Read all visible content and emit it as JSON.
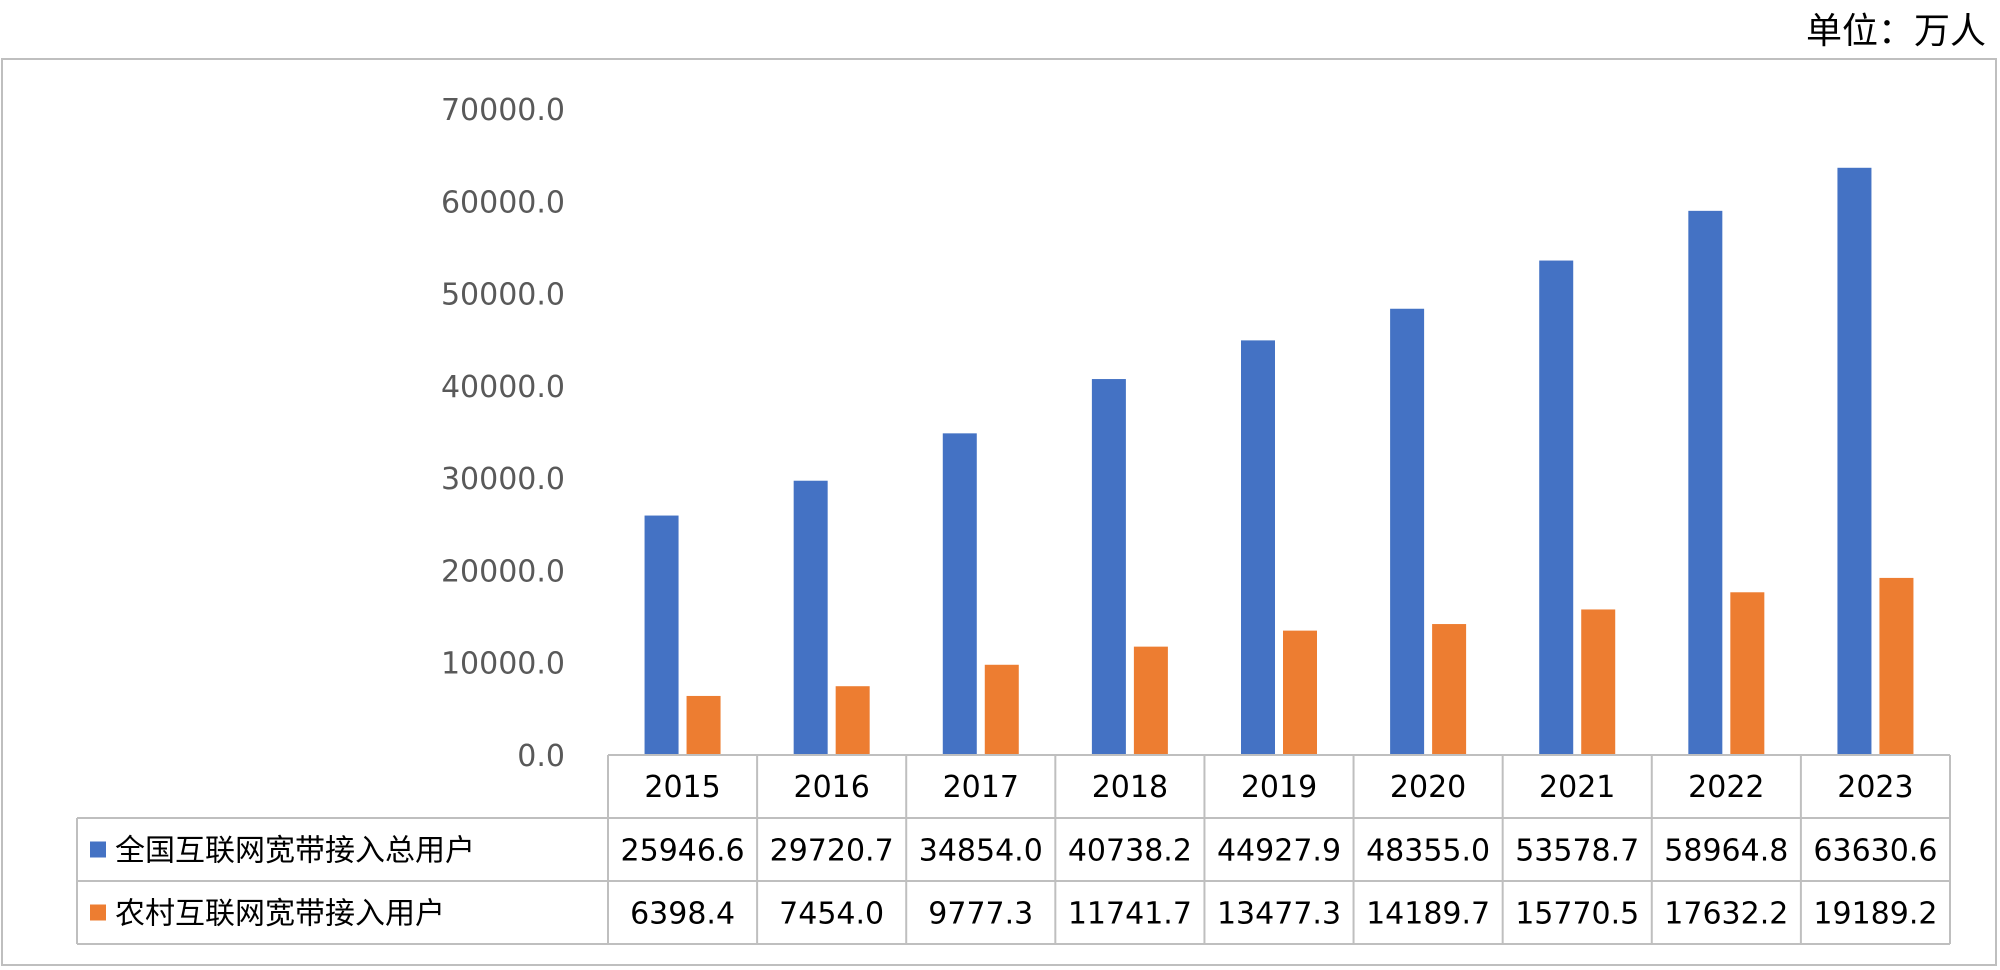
{
  "unit_label": "单位：万人",
  "chart_data": {
    "type": "bar",
    "categories": [
      "2015",
      "2016",
      "2017",
      "2018",
      "2019",
      "2020",
      "2021",
      "2022",
      "2023"
    ],
    "series": [
      {
        "name": "全国互联网宽带接入总用户",
        "color": "#4472C4",
        "values": [
          25946.6,
          29720.7,
          34854.0,
          40738.2,
          44927.9,
          48355.0,
          53578.7,
          58964.8,
          63630.6
        ],
        "labels": [
          "25946.6",
          "29720.7",
          "34854.0",
          "40738.2",
          "44927.9",
          "48355.0",
          "53578.7",
          "58964.8",
          "63630.6"
        ]
      },
      {
        "name": "农村互联网宽带接入用户",
        "color": "#ED7D31",
        "values": [
          6398.4,
          7454.0,
          9777.3,
          11741.7,
          13477.3,
          14189.7,
          15770.5,
          17632.2,
          19189.2
        ],
        "labels": [
          "6398.4",
          "7454.0",
          "9777.3",
          "11741.7",
          "13477.3",
          "14189.7",
          "15770.5",
          "17632.2",
          "19189.2"
        ]
      }
    ],
    "yticks": [
      "0.0",
      "10000.0",
      "20000.0",
      "30000.0",
      "40000.0",
      "50000.0",
      "60000.0",
      "70000.0"
    ],
    "ylim": [
      0,
      70000
    ],
    "grid": false,
    "legend": "data-table",
    "title": "",
    "xlabel": "",
    "ylabel": ""
  }
}
